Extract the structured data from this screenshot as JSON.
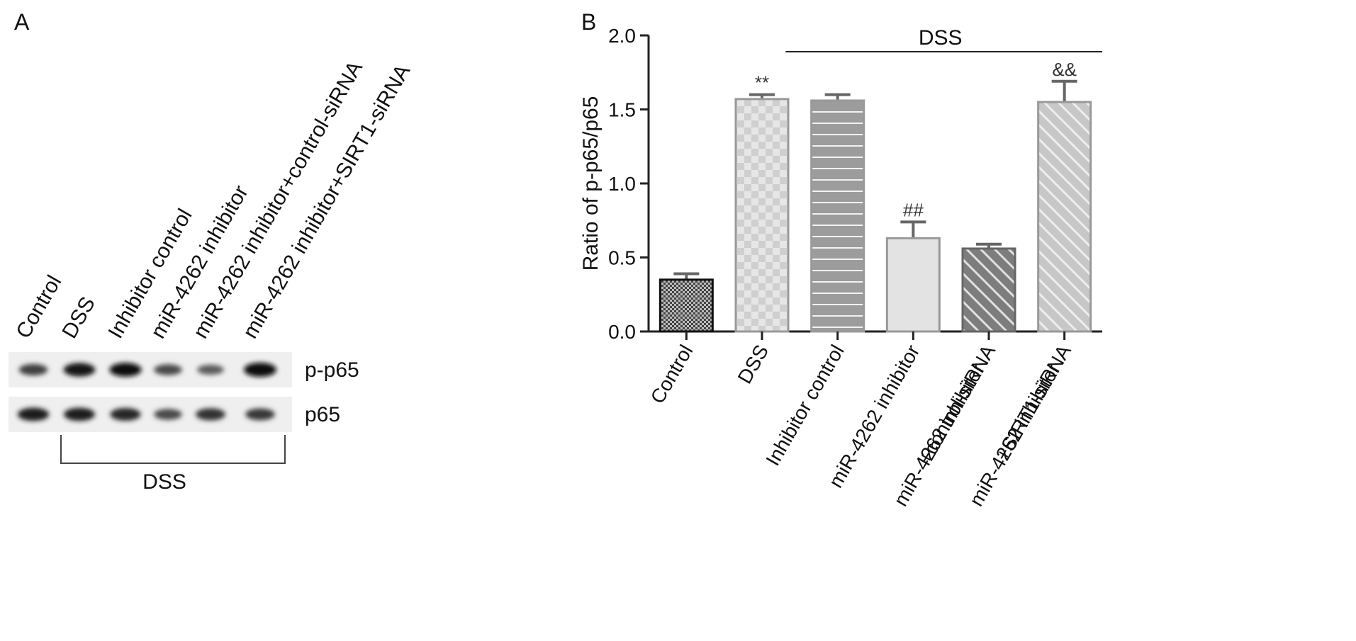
{
  "panels": {
    "a": "A",
    "b": "B"
  },
  "blot": {
    "lanes": [
      "Control",
      "DSS",
      "Inhibitor control",
      "miR-4262 inhibitor",
      "miR-4262 inhibitor+control-siRNA",
      "miR-4262 inhibitor+SIRT1-siRNA"
    ],
    "rows": [
      {
        "label": "p-p65",
        "intensity": [
          0.62,
          0.92,
          0.95,
          0.55,
          0.42,
          1.0
        ]
      },
      {
        "label": "p65",
        "intensity": [
          0.88,
          0.86,
          0.8,
          0.55,
          0.72,
          0.68
        ]
      }
    ],
    "group_label": "DSS"
  },
  "chart_data": {
    "type": "bar",
    "categories": [
      [
        "Control"
      ],
      [
        "DSS"
      ],
      [
        "Inhibitor control"
      ],
      [
        "miR-4262 inhibitor"
      ],
      [
        "miR-4262 inhibitor",
        "+control-siRNA"
      ],
      [
        "miR-4262 inhibitor",
        "+SIRT1-siRNA"
      ]
    ],
    "values": [
      0.35,
      1.57,
      1.56,
      0.63,
      0.56,
      1.55
    ],
    "errors": [
      0.04,
      0.03,
      0.04,
      0.11,
      0.03,
      0.14
    ],
    "annotations": [
      "",
      "**",
      "",
      "##",
      "",
      "&&"
    ],
    "ylabel": "Ratio of p-p65/p65",
    "ylim": [
      0,
      2.0
    ],
    "yticks": [
      "0.0",
      "0.5",
      "1.0",
      "1.5",
      "2.0"
    ],
    "group_label": "DSS",
    "patterns": [
      "crosshatch-dark",
      "checker-light",
      "horizontal-lines",
      "solid-light",
      "diagonal-dark",
      "diagonal-light"
    ],
    "colors": {
      "control": "#3a3a3a",
      "dss": "#c4c4c4",
      "inhibitor_control": "#9a9a9a",
      "mir_inhibitor": "#e2e2e2",
      "control_sirna": "#808080",
      "sirt1_sirna": "#c9c9c9"
    }
  }
}
